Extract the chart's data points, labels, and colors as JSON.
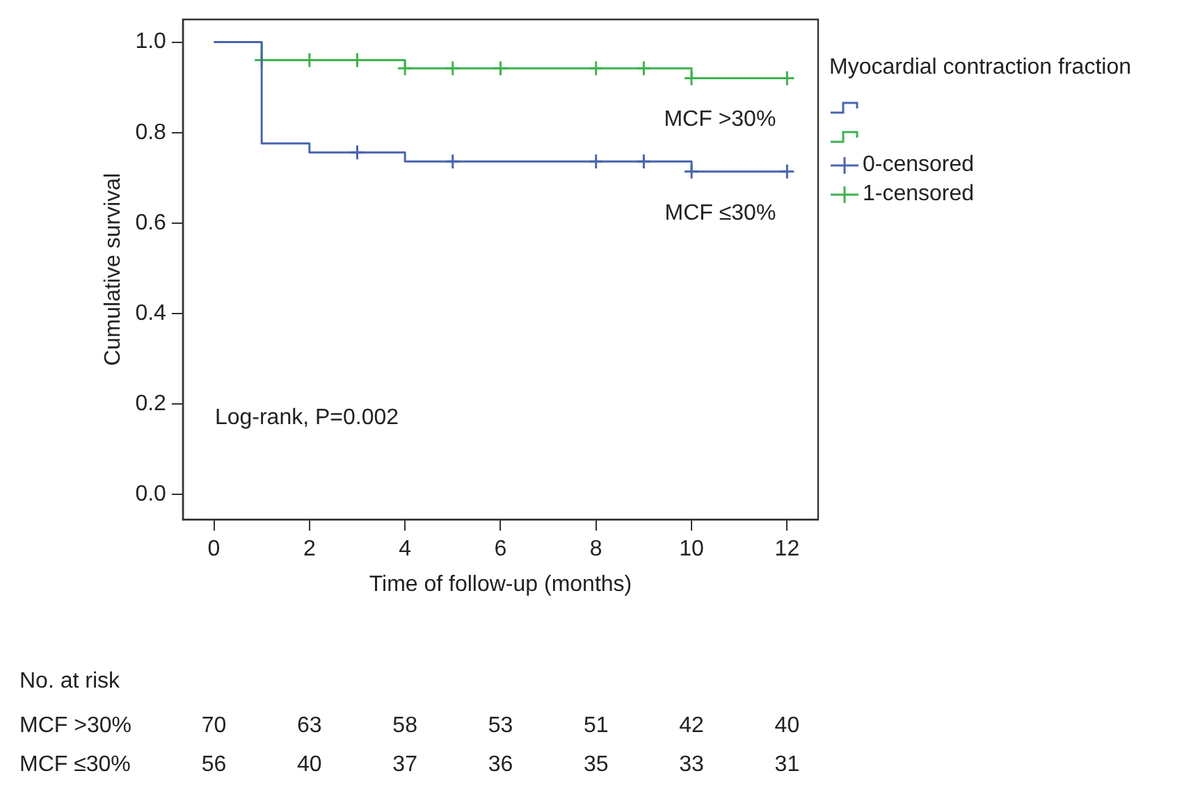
{
  "chart_data": {
    "type": "step",
    "xlabel": "Time of follow-up (months)",
    "ylabel": "Cumulative survival",
    "legend_title": "Myocardial contraction fraction",
    "series": [
      {
        "name": "MCF ≤30%",
        "color": "#4a64b0",
        "x": [
          0,
          1,
          2,
          4,
          10,
          12
        ],
        "values": [
          1,
          0.776,
          0.756,
          0.736,
          0.714,
          0.714
        ]
      },
      {
        "name": "MCF >30%",
        "color": "#3db34e",
        "x": [
          0,
          1,
          4,
          10,
          12
        ],
        "values": [
          1,
          0.96,
          0.942,
          0.92,
          0.92
        ]
      },
      {
        "name": "0-censored",
        "type": "scatter",
        "marker": "cross",
        "color": "#4a64b0",
        "x": [
          3,
          5,
          8,
          9,
          10,
          12
        ],
        "values": [
          0.756,
          0.736,
          0.736,
          0.736,
          0.714,
          0.714
        ]
      },
      {
        "name": "1-censored",
        "type": "scatter",
        "marker": "cross",
        "color": "#3db34e",
        "x": [
          1,
          2,
          3,
          4,
          5,
          6,
          8,
          9,
          10,
          12
        ],
        "values": [
          0.96,
          0.96,
          0.96,
          0.942,
          0.942,
          0.942,
          0.942,
          0.942,
          0.92,
          0.92
        ]
      }
    ],
    "xlim": [
      -0.65,
      12.65
    ],
    "xticks": [
      0,
      2,
      4,
      6,
      8,
      10,
      12
    ],
    "ylim": [
      -0.055,
      1.05
    ],
    "yticks": [
      {
        "value": 0,
        "label": "0.0"
      },
      {
        "value": 0.2,
        "label": "0.2"
      },
      {
        "value": 0.4,
        "label": "0.4"
      },
      {
        "value": 0.6,
        "label": "0.6"
      },
      {
        "value": 0.8,
        "label": "0.8"
      },
      {
        "value": 1,
        "label": "1.0"
      }
    ],
    "grid": false,
    "legend": "right",
    "annotations": [
      "Log-rank, P=0.002",
      "No. at risk",
      "MCF >30%",
      "70",
      "63",
      "58",
      "53",
      "51",
      "42",
      "40",
      "MCF ≤30%",
      "56",
      "40",
      "37",
      "36",
      "35",
      "33",
      "31"
    ]
  }
}
